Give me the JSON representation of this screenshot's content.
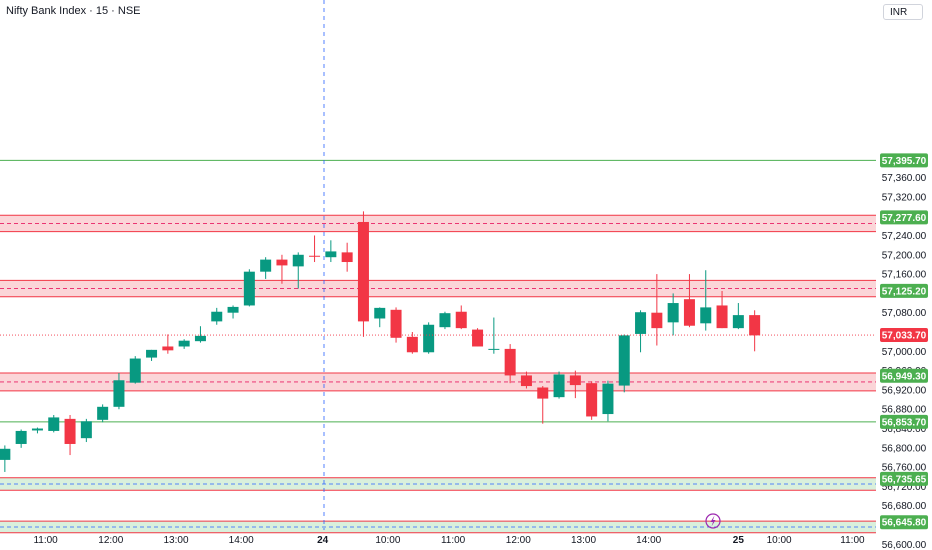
{
  "header": {
    "title": "Nifty Bank Index · 15 · NSE",
    "currency": "INR"
  },
  "icons": {
    "flash": "lightning-icon"
  },
  "colors": {
    "up": "#089981",
    "down": "#f23645",
    "level_green": "#4caf50",
    "level_red": "#f23645",
    "zone_red_fill": "#fbd5d8",
    "zone_green_fill": "#d9f0dc",
    "current_price": "#f23645",
    "crosshair": "#2962ff"
  },
  "chart_data": {
    "type": "candlestick",
    "title": "Nifty Bank Index · 15 · NSE",
    "ylim": [
      56580,
      57440
    ],
    "y_ticks": [
      57360,
      57320,
      57240,
      57200,
      57160,
      57080,
      57000,
      56960,
      56920,
      56880,
      56840,
      56800,
      56760,
      56720,
      56680,
      56600
    ],
    "x_tick_labels": [
      {
        "label": "11:00",
        "bar": 2.5
      },
      {
        "label": "12:00",
        "bar": 6.5
      },
      {
        "label": "13:00",
        "bar": 10.5
      },
      {
        "label": "14:00",
        "bar": 14.5
      },
      {
        "label": "24",
        "bar": 19.5
      },
      {
        "label": "10:00",
        "bar": 23.5
      },
      {
        "label": "11:00",
        "bar": 27.5
      },
      {
        "label": "12:00",
        "bar": 31.5
      },
      {
        "label": "13:00",
        "bar": 35.5
      },
      {
        "label": "14:00",
        "bar": 39.5
      },
      {
        "label": "25",
        "bar": 45.0
      },
      {
        "label": "10:00",
        "bar": 47.5
      },
      {
        "label": "11:00",
        "bar": 52.0
      }
    ],
    "day_separator_bar": 19.75,
    "candles": [
      {
        "o": 56775,
        "h": 56805,
        "l": 56750,
        "c": 56798
      },
      {
        "o": 56808,
        "h": 56838,
        "l": 56800,
        "c": 56835
      },
      {
        "o": 56836,
        "h": 56842,
        "l": 56830,
        "c": 56840
      },
      {
        "o": 56835,
        "h": 56868,
        "l": 56832,
        "c": 56863
      },
      {
        "o": 56860,
        "h": 56868,
        "l": 56785,
        "c": 56808
      },
      {
        "o": 56820,
        "h": 56860,
        "l": 56812,
        "c": 56855
      },
      {
        "o": 56858,
        "h": 56890,
        "l": 56853,
        "c": 56885
      },
      {
        "o": 56885,
        "h": 56955,
        "l": 56880,
        "c": 56940
      },
      {
        "o": 56935,
        "h": 56990,
        "l": 56933,
        "c": 56985
      },
      {
        "o": 56987,
        "h": 57003,
        "l": 56980,
        "c": 57003
      },
      {
        "o": 57010,
        "h": 57035,
        "l": 56995,
        "c": 57002
      },
      {
        "o": 57010,
        "h": 57025,
        "l": 57005,
        "c": 57022
      },
      {
        "o": 57021,
        "h": 57052,
        "l": 57018,
        "c": 57032
      },
      {
        "o": 57062,
        "h": 57090,
        "l": 57055,
        "c": 57082
      },
      {
        "o": 57080,
        "h": 57095,
        "l": 57068,
        "c": 57092
      },
      {
        "o": 57095,
        "h": 57170,
        "l": 57093,
        "c": 57165
      },
      {
        "o": 57165,
        "h": 57195,
        "l": 57150,
        "c": 57190
      },
      {
        "o": 57190,
        "h": 57200,
        "l": 57140,
        "c": 57178
      },
      {
        "o": 57176,
        "h": 57205,
        "l": 57130,
        "c": 57200
      },
      {
        "o": 57198,
        "h": 57240,
        "l": 57185,
        "c": 57196
      },
      {
        "o": 57195,
        "h": 57230,
        "l": 57185,
        "c": 57207
      },
      {
        "o": 57205,
        "h": 57225,
        "l": 57165,
        "c": 57185
      },
      {
        "o": 57268,
        "h": 57290,
        "l": 57030,
        "c": 57062
      },
      {
        "o": 57068,
        "h": 57091,
        "l": 57050,
        "c": 57090
      },
      {
        "o": 57086,
        "h": 57091,
        "l": 57018,
        "c": 57028
      },
      {
        "o": 57030,
        "h": 57040,
        "l": 56995,
        "c": 56998
      },
      {
        "o": 56998,
        "h": 57060,
        "l": 56995,
        "c": 57055
      },
      {
        "o": 57050,
        "h": 57082,
        "l": 57046,
        "c": 57079
      },
      {
        "o": 57082,
        "h": 57095,
        "l": 57046,
        "c": 57048
      },
      {
        "o": 57045,
        "h": 57048,
        "l": 57010,
        "c": 57010
      },
      {
        "o": 57005,
        "h": 57070,
        "l": 56995,
        "c": 57005
      },
      {
        "o": 57005,
        "h": 57015,
        "l": 56934,
        "c": 56950
      },
      {
        "o": 56950,
        "h": 56958,
        "l": 56923,
        "c": 56928
      },
      {
        "o": 56925,
        "h": 56928,
        "l": 56850,
        "c": 56902
      },
      {
        "o": 56905,
        "h": 56958,
        "l": 56902,
        "c": 56952
      },
      {
        "o": 56950,
        "h": 56960,
        "l": 56903,
        "c": 56930
      },
      {
        "o": 56934,
        "h": 56938,
        "l": 56858,
        "c": 56865
      },
      {
        "o": 56870,
        "h": 56939,
        "l": 56855,
        "c": 56933
      },
      {
        "o": 56929,
        "h": 57035,
        "l": 56915,
        "c": 57033
      },
      {
        "o": 57036,
        "h": 57085,
        "l": 56998,
        "c": 57081
      },
      {
        "o": 57080,
        "h": 57160,
        "l": 57012,
        "c": 57048
      },
      {
        "o": 57060,
        "h": 57120,
        "l": 57033,
        "c": 57100
      },
      {
        "o": 57108,
        "h": 57160,
        "l": 57050,
        "c": 57053
      },
      {
        "o": 57058,
        "h": 57168,
        "l": 57043,
        "c": 57091
      },
      {
        "o": 57095,
        "h": 57125,
        "l": 57048,
        "c": 57048
      },
      {
        "o": 57048,
        "h": 57100,
        "l": 57046,
        "c": 57075
      },
      {
        "o": 57075,
        "h": 57085,
        "l": 57000,
        "c": 57033
      }
    ],
    "levels": [
      {
        "price": 57395.7,
        "label": "57,395.70",
        "color": "#4caf50",
        "zone": null
      },
      {
        "price": 57277.6,
        "label": "57,277.60",
        "color": "#4caf50",
        "zone": [
          57248,
          57282
        ],
        "zone_color": "red"
      },
      {
        "price": 57125.2,
        "label": "57,125.20",
        "color": "#4caf50",
        "zone": [
          57113,
          57147
        ],
        "zone_color": "red"
      },
      {
        "price": 56949.3,
        "label": "56,949.30",
        "color": "#4caf50",
        "zone": [
          56918,
          56955
        ],
        "zone_color": "red"
      },
      {
        "price": 56853.7,
        "label": "56,853.70",
        "color": "#4caf50",
        "zone": null
      },
      {
        "price": 56735.65,
        "label": "56,735.65",
        "color": "#4caf50",
        "zone": [
          56712,
          56738
        ],
        "zone_color": "green"
      },
      {
        "price": 56645.8,
        "label": "56,645.80",
        "color": "#4caf50",
        "zone": [
          56624,
          56648
        ],
        "zone_color": "green"
      }
    ],
    "current_price": {
      "price": 57033.7,
      "label": "57,033.70"
    }
  }
}
